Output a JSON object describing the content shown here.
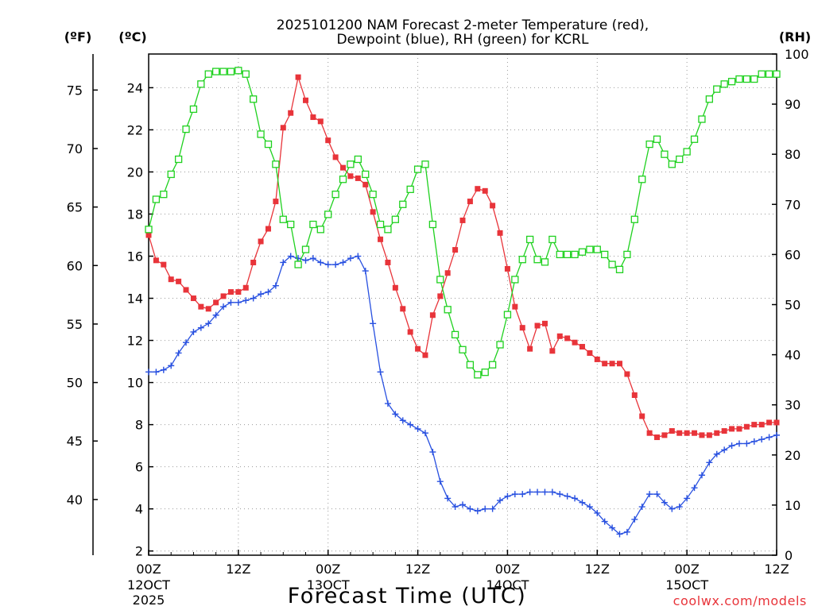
{
  "chart_data": {
    "type": "line",
    "title_line1": "2025101200 NAM Forecast 2-meter Temperature (red),",
    "title_line2": "Dewpoint (blue), RH (green) for KCRL",
    "left_outer_unit": "(ºF)",
    "left_inner_unit": "(ºC)",
    "right_unit": "(RH)",
    "xlabel": "Forecast Time (UTC)",
    "credit": "coolwx.com/models",
    "x_range": [
      0,
      84
    ],
    "y_c_range": [
      1.8,
      25.6
    ],
    "y_rh_range": [
      0,
      100
    ],
    "y_c_ticks": [
      2,
      4,
      6,
      8,
      10,
      12,
      14,
      16,
      18,
      20,
      22,
      24
    ],
    "y_f_ticks": [
      40,
      45,
      50,
      55,
      60,
      65,
      70,
      75
    ],
    "y_rh_ticks": [
      0,
      10,
      20,
      30,
      40,
      50,
      60,
      70,
      80,
      90,
      100
    ],
    "x_ticks": [
      {
        "x": 0,
        "line1": "00Z",
        "line2": "12OCT",
        "line3": "2025"
      },
      {
        "x": 12,
        "line1": "12Z",
        "line2": "",
        "line3": ""
      },
      {
        "x": 24,
        "line1": "00Z",
        "line2": "13OCT",
        "line3": ""
      },
      {
        "x": 36,
        "line1": "12Z",
        "line2": "",
        "line3": ""
      },
      {
        "x": 48,
        "line1": "00Z",
        "line2": "14OCT",
        "line3": ""
      },
      {
        "x": 60,
        "line1": "12Z",
        "line2": "",
        "line3": ""
      },
      {
        "x": 72,
        "line1": "00Z",
        "line2": "15OCT",
        "line3": ""
      },
      {
        "x": 84,
        "line1": "12Z",
        "line2": "",
        "line3": ""
      }
    ],
    "grid": true,
    "series": [
      {
        "name": "Temperature",
        "unit": "C",
        "color": "#e8343a",
        "marker": "filled-square",
        "points": [
          [
            0,
            17.0
          ],
          [
            1,
            15.8
          ],
          [
            2,
            15.6
          ],
          [
            3,
            14.9
          ],
          [
            4,
            14.8
          ],
          [
            5,
            14.4
          ],
          [
            6,
            14.0
          ],
          [
            7,
            13.6
          ],
          [
            8,
            13.5
          ],
          [
            9,
            13.8
          ],
          [
            10,
            14.1
          ],
          [
            11,
            14.3
          ],
          [
            12,
            14.3
          ],
          [
            13,
            14.5
          ],
          [
            14,
            15.7
          ],
          [
            15,
            16.7
          ],
          [
            16,
            17.3
          ],
          [
            17,
            18.6
          ],
          [
            18,
            22.1
          ],
          [
            19,
            22.8
          ],
          [
            20,
            24.5
          ],
          [
            21,
            23.4
          ],
          [
            22,
            22.6
          ],
          [
            23,
            22.4
          ],
          [
            24,
            21.5
          ],
          [
            25,
            20.7
          ],
          [
            26,
            20.2
          ],
          [
            27,
            19.8
          ],
          [
            28,
            19.7
          ],
          [
            29,
            19.4
          ],
          [
            30,
            18.1
          ],
          [
            31,
            16.8
          ],
          [
            32,
            15.7
          ],
          [
            33,
            14.5
          ],
          [
            34,
            13.5
          ],
          [
            35,
            12.4
          ],
          [
            36,
            11.6
          ],
          [
            37,
            11.3
          ],
          [
            38,
            13.2
          ],
          [
            39,
            14.1
          ],
          [
            40,
            15.2
          ],
          [
            41,
            16.3
          ],
          [
            42,
            17.7
          ],
          [
            43,
            18.6
          ],
          [
            44,
            19.2
          ],
          [
            45,
            19.1
          ],
          [
            46,
            18.4
          ],
          [
            47,
            17.1
          ],
          [
            48,
            15.4
          ],
          [
            49,
            13.6
          ],
          [
            50,
            12.6
          ],
          [
            51,
            11.6
          ],
          [
            52,
            12.7
          ],
          [
            53,
            12.8
          ],
          [
            54,
            11.5
          ],
          [
            55,
            12.2
          ],
          [
            56,
            12.1
          ],
          [
            57,
            11.9
          ],
          [
            58,
            11.7
          ],
          [
            59,
            11.4
          ],
          [
            60,
            11.1
          ],
          [
            61,
            10.9
          ],
          [
            62,
            10.9
          ],
          [
            63,
            10.9
          ],
          [
            64,
            10.4
          ],
          [
            65,
            9.4
          ],
          [
            66,
            8.4
          ],
          [
            67,
            7.6
          ],
          [
            68,
            7.4
          ],
          [
            69,
            7.5
          ],
          [
            70,
            7.7
          ],
          [
            71,
            7.6
          ],
          [
            72,
            7.6
          ],
          [
            73,
            7.6
          ],
          [
            74,
            7.5
          ],
          [
            75,
            7.5
          ],
          [
            76,
            7.6
          ],
          [
            77,
            7.7
          ],
          [
            78,
            7.8
          ],
          [
            79,
            7.8
          ],
          [
            80,
            7.9
          ],
          [
            81,
            8.0
          ],
          [
            82,
            8.0
          ],
          [
            83,
            8.1
          ],
          [
            84,
            8.1
          ]
        ]
      },
      {
        "name": "Dewpoint",
        "unit": "C",
        "color": "#2850e0",
        "marker": "plus",
        "points": [
          [
            0,
            10.5
          ],
          [
            1,
            10.5
          ],
          [
            2,
            10.6
          ],
          [
            3,
            10.8
          ],
          [
            4,
            11.4
          ],
          [
            5,
            11.9
          ],
          [
            6,
            12.4
          ],
          [
            7,
            12.6
          ],
          [
            8,
            12.8
          ],
          [
            9,
            13.2
          ],
          [
            10,
            13.6
          ],
          [
            11,
            13.8
          ],
          [
            12,
            13.8
          ],
          [
            13,
            13.9
          ],
          [
            14,
            14.0
          ],
          [
            15,
            14.2
          ],
          [
            16,
            14.3
          ],
          [
            17,
            14.6
          ],
          [
            18,
            15.7
          ],
          [
            19,
            16.0
          ],
          [
            20,
            15.9
          ],
          [
            21,
            15.8
          ],
          [
            22,
            15.9
          ],
          [
            23,
            15.7
          ],
          [
            24,
            15.6
          ],
          [
            25,
            15.6
          ],
          [
            26,
            15.7
          ],
          [
            27,
            15.9
          ],
          [
            28,
            16.0
          ],
          [
            29,
            15.3
          ],
          [
            30,
            12.8
          ],
          [
            31,
            10.5
          ],
          [
            32,
            9.0
          ],
          [
            33,
            8.5
          ],
          [
            34,
            8.2
          ],
          [
            35,
            8.0
          ],
          [
            36,
            7.8
          ],
          [
            37,
            7.6
          ],
          [
            38,
            6.7
          ],
          [
            39,
            5.3
          ],
          [
            40,
            4.5
          ],
          [
            41,
            4.1
          ],
          [
            42,
            4.2
          ],
          [
            43,
            4.0
          ],
          [
            44,
            3.9
          ],
          [
            45,
            4.0
          ],
          [
            46,
            4.0
          ],
          [
            47,
            4.4
          ],
          [
            48,
            4.6
          ],
          [
            49,
            4.7
          ],
          [
            50,
            4.7
          ],
          [
            51,
            4.8
          ],
          [
            52,
            4.8
          ],
          [
            53,
            4.8
          ],
          [
            54,
            4.8
          ],
          [
            55,
            4.7
          ],
          [
            56,
            4.6
          ],
          [
            57,
            4.5
          ],
          [
            58,
            4.3
          ],
          [
            59,
            4.1
          ],
          [
            60,
            3.8
          ],
          [
            61,
            3.4
          ],
          [
            62,
            3.1
          ],
          [
            63,
            2.8
          ],
          [
            64,
            2.9
          ],
          [
            65,
            3.5
          ],
          [
            66,
            4.1
          ],
          [
            67,
            4.7
          ],
          [
            68,
            4.7
          ],
          [
            69,
            4.3
          ],
          [
            70,
            4.0
          ],
          [
            71,
            4.1
          ],
          [
            72,
            4.5
          ],
          [
            73,
            5.0
          ],
          [
            74,
            5.6
          ],
          [
            75,
            6.2
          ],
          [
            76,
            6.6
          ],
          [
            77,
            6.8
          ],
          [
            78,
            7.0
          ],
          [
            79,
            7.1
          ],
          [
            80,
            7.1
          ],
          [
            81,
            7.2
          ],
          [
            82,
            7.3
          ],
          [
            83,
            7.4
          ],
          [
            84,
            7.5
          ]
        ]
      },
      {
        "name": "RH",
        "unit": "%",
        "color": "#1fd11f",
        "marker": "open-square",
        "points": [
          [
            0,
            65
          ],
          [
            1,
            71
          ],
          [
            2,
            72
          ],
          [
            3,
            76
          ],
          [
            4,
            79
          ],
          [
            5,
            85
          ],
          [
            6,
            89
          ],
          [
            7,
            94
          ],
          [
            8,
            96
          ],
          [
            9,
            96.5
          ],
          [
            10,
            96.5
          ],
          [
            11,
            96.5
          ],
          [
            12,
            96.7
          ],
          [
            13,
            96
          ],
          [
            14,
            91
          ],
          [
            15,
            84
          ],
          [
            16,
            82
          ],
          [
            17,
            78
          ],
          [
            18,
            67
          ],
          [
            19,
            66
          ],
          [
            20,
            58
          ],
          [
            21,
            61
          ],
          [
            22,
            66
          ],
          [
            23,
            65
          ],
          [
            24,
            68
          ],
          [
            25,
            72
          ],
          [
            26,
            75
          ],
          [
            27,
            78
          ],
          [
            28,
            79
          ],
          [
            29,
            76
          ],
          [
            30,
            72
          ],
          [
            31,
            66
          ],
          [
            32,
            65
          ],
          [
            33,
            67
          ],
          [
            34,
            70
          ],
          [
            35,
            73
          ],
          [
            36,
            77
          ],
          [
            37,
            78
          ],
          [
            38,
            66
          ],
          [
            39,
            55
          ],
          [
            40,
            49
          ],
          [
            41,
            44
          ],
          [
            42,
            41
          ],
          [
            43,
            38
          ],
          [
            44,
            36
          ],
          [
            45,
            36.5
          ],
          [
            46,
            38
          ],
          [
            47,
            42
          ],
          [
            48,
            48
          ],
          [
            49,
            55
          ],
          [
            50,
            59
          ],
          [
            51,
            63
          ],
          [
            52,
            59
          ],
          [
            53,
            58.5
          ],
          [
            54,
            63
          ],
          [
            55,
            60
          ],
          [
            56,
            60
          ],
          [
            57,
            60
          ],
          [
            58,
            60.5
          ],
          [
            59,
            61
          ],
          [
            60,
            61
          ],
          [
            61,
            60
          ],
          [
            62,
            58
          ],
          [
            63,
            57
          ],
          [
            64,
            60
          ],
          [
            65,
            67
          ],
          [
            66,
            75
          ],
          [
            67,
            82
          ],
          [
            68,
            83
          ],
          [
            69,
            80
          ],
          [
            70,
            78
          ],
          [
            71,
            79
          ],
          [
            72,
            80.5
          ],
          [
            73,
            83
          ],
          [
            74,
            87
          ],
          [
            75,
            91
          ],
          [
            76,
            93
          ],
          [
            77,
            94
          ],
          [
            78,
            94.5
          ],
          [
            79,
            95
          ],
          [
            80,
            95
          ],
          [
            81,
            95
          ],
          [
            82,
            96
          ],
          [
            83,
            96
          ],
          [
            84,
            96
          ]
        ]
      }
    ]
  }
}
